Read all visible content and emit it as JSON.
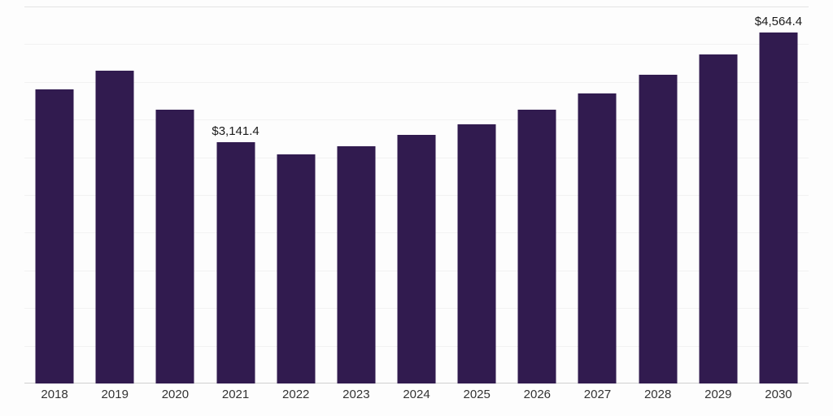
{
  "chart_data": {
    "type": "bar",
    "title": "",
    "xlabel": "",
    "ylabel": "",
    "categories": [
      "2018",
      "2019",
      "2020",
      "2021",
      "2022",
      "2023",
      "2024",
      "2025",
      "2026",
      "2027",
      "2028",
      "2029",
      "2030"
    ],
    "values": [
      3825,
      4070,
      3560,
      3141.4,
      2980,
      3085,
      3235,
      3370,
      3560,
      3775,
      4015,
      4280,
      4564.4
    ],
    "data_labels": {
      "2021": "$3,141.4",
      "2030": "$4,564.4"
    },
    "ylim": [
      0,
      4905
    ],
    "grid": true,
    "legend": "none",
    "colors": {
      "bar": "#311b4f",
      "background": "#fdfdfd",
      "gridline": "#f2f2f2",
      "axis_line": "#cfcfcf",
      "tick_text": "#333333",
      "label_text": "#1a1a1a"
    }
  }
}
